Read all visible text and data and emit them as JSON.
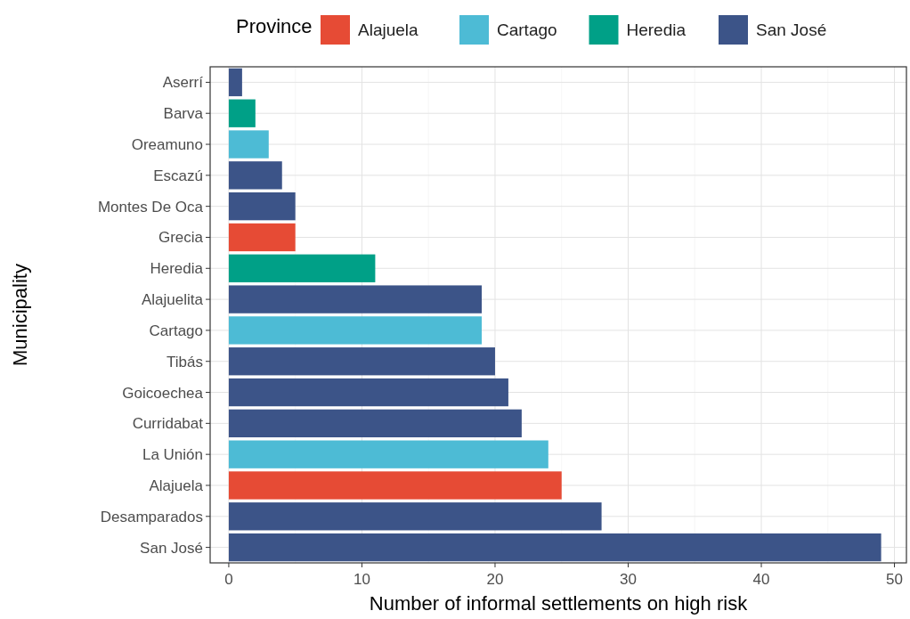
{
  "chart_data": {
    "type": "bar",
    "orientation": "horizontal",
    "xlabel": "Number of informal settlements on high risk",
    "ylabel": "Municipality",
    "legend_title": "Province",
    "legend": "top",
    "grid": true,
    "categories": [
      "Aserrí",
      "Barva",
      "Oreamuno",
      "Escazú",
      "Montes De Oca",
      "Grecia",
      "Heredia",
      "Alajuelita",
      "Cartago",
      "Tibás",
      "Goicoechea",
      "Curridabat",
      "La Unión",
      "Alajuela",
      "Desamparados",
      "San José"
    ],
    "series": [
      {
        "name": "Alajuela",
        "color": "#e64b35",
        "values": [
          null,
          null,
          null,
          null,
          null,
          5,
          null,
          null,
          null,
          null,
          null,
          null,
          null,
          25,
          null,
          null
        ]
      },
      {
        "name": "Cartago",
        "color": "#4dbbd5",
        "values": [
          null,
          null,
          3,
          null,
          null,
          null,
          null,
          null,
          19,
          null,
          null,
          null,
          24,
          null,
          null,
          null
        ]
      },
      {
        "name": "Heredia",
        "color": "#00a087",
        "values": [
          null,
          2,
          null,
          null,
          null,
          null,
          11,
          null,
          null,
          null,
          null,
          null,
          null,
          null,
          null,
          null
        ]
      },
      {
        "name": "San José",
        "color": "#3c5488",
        "values": [
          1,
          null,
          null,
          4,
          5,
          null,
          null,
          19,
          null,
          20,
          21,
          22,
          null,
          null,
          28,
          49
        ]
      }
    ],
    "xlim": [
      -1.4,
      50.9
    ],
    "xticks": [
      0,
      10,
      20,
      30,
      40,
      50
    ]
  }
}
